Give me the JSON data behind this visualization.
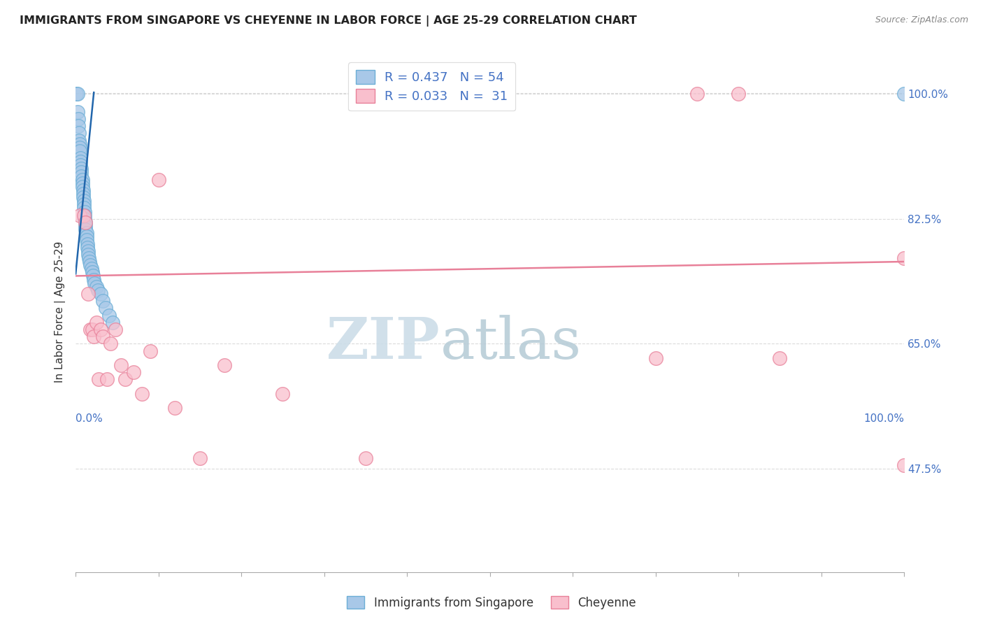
{
  "title": "IMMIGRANTS FROM SINGAPORE VS CHEYENNE IN LABOR FORCE | AGE 25-29 CORRELATION CHART",
  "source": "Source: ZipAtlas.com",
  "ylabel": "In Labor Force | Age 25-29",
  "xlim": [
    0.0,
    1.0
  ],
  "ylim": [
    0.33,
    1.06
  ],
  "yticks": [
    0.475,
    0.65,
    0.825,
    1.0
  ],
  "ytick_labels": [
    "47.5%",
    "65.0%",
    "82.5%",
    "100.0%"
  ],
  "singapore_color_face": "#a8c8e8",
  "singapore_color_edge": "#6baed6",
  "cheyenne_color_face": "#f9bfcd",
  "cheyenne_color_edge": "#e88099",
  "singapore_trend_color": "#2166ac",
  "cheyenne_trend_color": "#e88099",
  "grid_color": "#cccccc",
  "background_color": "#ffffff",
  "title_fontsize": 11.5,
  "source_fontsize": 9,
  "watermark_color": "#ccdde8",
  "ytick_color": "#4472c4",
  "singapore_scatter_x": [
    0.001,
    0.002,
    0.002,
    0.003,
    0.003,
    0.004,
    0.004,
    0.005,
    0.005,
    0.005,
    0.006,
    0.006,
    0.006,
    0.007,
    0.007,
    0.007,
    0.008,
    0.008,
    0.008,
    0.009,
    0.009,
    0.009,
    0.01,
    0.01,
    0.01,
    0.011,
    0.011,
    0.011,
    0.012,
    0.012,
    0.012,
    0.013,
    0.013,
    0.013,
    0.014,
    0.014,
    0.015,
    0.015,
    0.016,
    0.017,
    0.018,
    0.019,
    0.02,
    0.021,
    0.022,
    0.023,
    0.025,
    0.027,
    0.03,
    0.033,
    0.036,
    0.04,
    0.045,
    1.0
  ],
  "singapore_scatter_y": [
    1.0,
    1.0,
    0.975,
    0.965,
    0.955,
    0.945,
    0.935,
    0.93,
    0.925,
    0.92,
    0.91,
    0.905,
    0.9,
    0.895,
    0.89,
    0.885,
    0.88,
    0.875,
    0.87,
    0.865,
    0.86,
    0.855,
    0.85,
    0.845,
    0.84,
    0.835,
    0.83,
    0.825,
    0.82,
    0.815,
    0.81,
    0.805,
    0.8,
    0.795,
    0.79,
    0.785,
    0.78,
    0.775,
    0.77,
    0.765,
    0.76,
    0.755,
    0.75,
    0.745,
    0.74,
    0.735,
    0.73,
    0.725,
    0.72,
    0.71,
    0.7,
    0.69,
    0.68,
    1.0
  ],
  "cheyenne_scatter_x": [
    0.005,
    0.01,
    0.012,
    0.015,
    0.018,
    0.02,
    0.022,
    0.025,
    0.028,
    0.03,
    0.033,
    0.038,
    0.042,
    0.048,
    0.055,
    0.06,
    0.07,
    0.08,
    0.09,
    0.1,
    0.12,
    0.15,
    0.18,
    0.25,
    0.35,
    0.7,
    0.75,
    0.8,
    0.85,
    1.0,
    1.0
  ],
  "cheyenne_scatter_y": [
    0.83,
    0.83,
    0.82,
    0.72,
    0.67,
    0.67,
    0.66,
    0.68,
    0.6,
    0.67,
    0.66,
    0.6,
    0.65,
    0.67,
    0.62,
    0.6,
    0.61,
    0.58,
    0.64,
    0.88,
    0.56,
    0.49,
    0.62,
    0.58,
    0.49,
    0.63,
    1.0,
    1.0,
    0.63,
    0.77,
    0.48
  ],
  "singapore_trend_x": [
    0.0,
    0.022
  ],
  "singapore_trend_y": [
    0.748,
    1.002
  ],
  "cheyenne_trend_x": [
    0.0,
    1.0
  ],
  "cheyenne_trend_y": [
    0.745,
    0.765
  ]
}
